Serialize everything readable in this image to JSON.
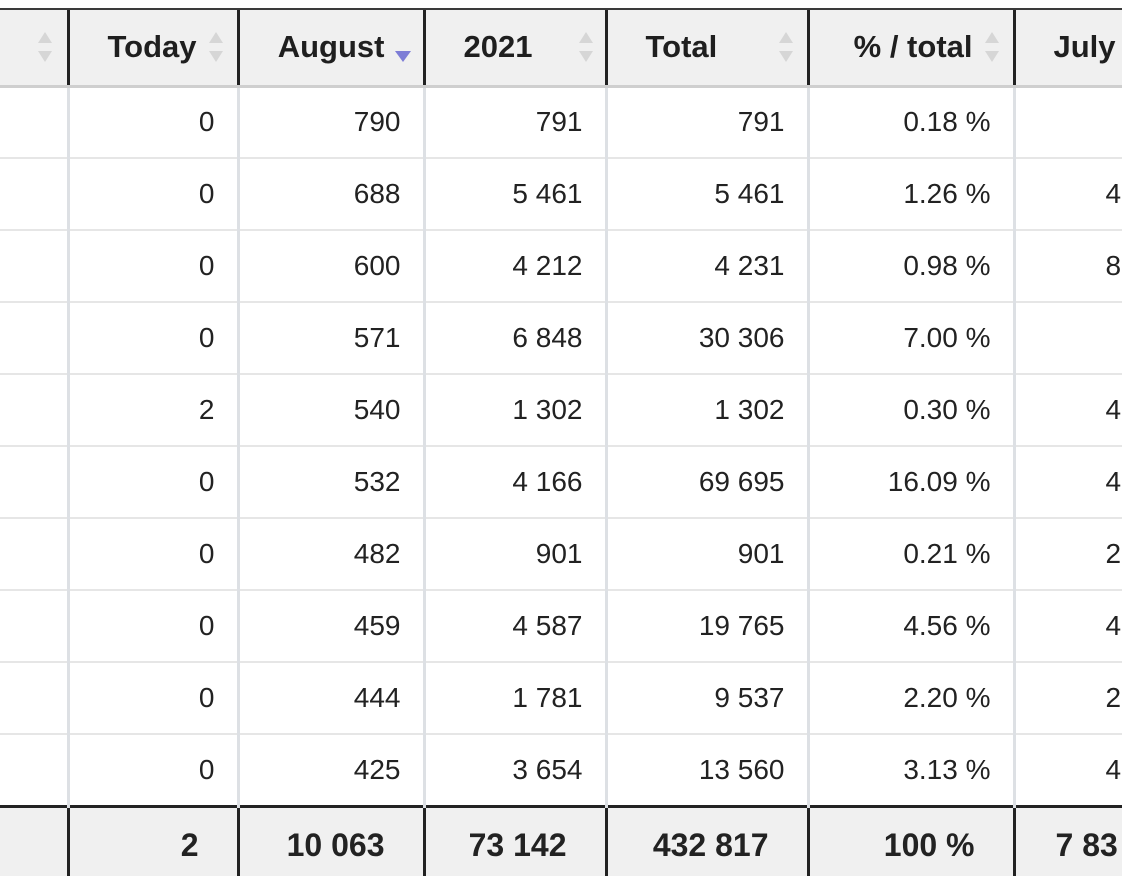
{
  "columns": [
    {
      "key": "name",
      "label": ""
    },
    {
      "key": "today",
      "label": "Today"
    },
    {
      "key": "august",
      "label": "August"
    },
    {
      "key": "year",
      "label": "2021"
    },
    {
      "key": "total",
      "label": "Total"
    },
    {
      "key": "pct",
      "label": "% / total"
    },
    {
      "key": "july",
      "label": "July"
    }
  ],
  "rows": [
    {
      "today": "0",
      "august": "790",
      "year": "791",
      "total": "791",
      "pct": "0.18 %",
      "july": ""
    },
    {
      "today": "0",
      "august": "688",
      "year": "5 461",
      "total": "5 461",
      "pct": "1.26 %",
      "july": "4"
    },
    {
      "today": "0",
      "august": "600",
      "year": "4 212",
      "total": "4 231",
      "pct": "0.98 %",
      "july": "8"
    },
    {
      "today": "0",
      "august": "571",
      "year": "6 848",
      "total": "30 306",
      "pct": "7.00 %",
      "july": ""
    },
    {
      "today": "2",
      "august": "540",
      "year": "1 302",
      "total": "1 302",
      "pct": "0.30 %",
      "july": "4"
    },
    {
      "today": "0",
      "august": "532",
      "year": "4 166",
      "total": "69 695",
      "pct": "16.09 %",
      "july": "4"
    },
    {
      "today": "0",
      "august": "482",
      "year": "901",
      "total": "901",
      "pct": "0.21 %",
      "july": "2"
    },
    {
      "today": "0",
      "august": "459",
      "year": "4 587",
      "total": "19 765",
      "pct": "4.56 %",
      "july": "4"
    },
    {
      "today": "0",
      "august": "444",
      "year": "1 781",
      "total": "9 537",
      "pct": "2.20 %",
      "july": "2"
    },
    {
      "today": "0",
      "august": "425",
      "year": "3 654",
      "total": "13 560",
      "pct": "3.13 %",
      "july": "4"
    }
  ],
  "totals": {
    "today": "2",
    "august": "10 063",
    "year": "73 142",
    "total": "432 817",
    "pct": "100 %",
    "july": "7 83"
  },
  "sort": {
    "column": "august",
    "direction": "descending"
  },
  "colors": {
    "sort_active": "#7d7dd6",
    "header_bg": "#f0f0f0",
    "footer_bg": "#f0f0f0",
    "grid": "#dde0e4"
  },
  "icons": {
    "sort": "sort-both-icon",
    "sort_active": "sort-desc-icon"
  }
}
